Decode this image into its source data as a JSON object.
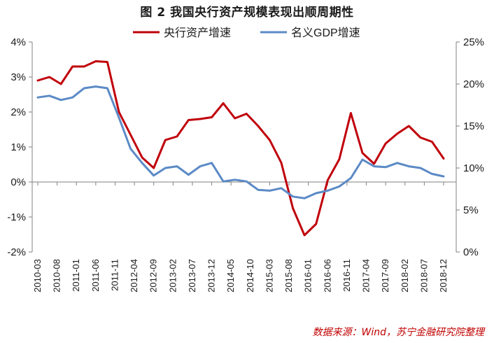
{
  "title": "图 2  我国央行资产规模表现出顺周期性",
  "source": "数据来源：Wind，苏宁金融研究院整理",
  "colors": {
    "series1": "#c0000b",
    "series2": "#5b8ac6",
    "axis": "#808080"
  },
  "chart_data": {
    "type": "line",
    "title": "图 2  我国央行资产规模表现出顺周期性",
    "legend_position": "top-center",
    "grid": false,
    "x_tick_labels": [
      "2010-03",
      "2010-08",
      "2011-01",
      "2011-06",
      "2011-11",
      "2012-04",
      "2012-09",
      "2013-02",
      "2013-07",
      "2013-12",
      "2014-05",
      "2014-10",
      "2015-03",
      "2015-08",
      "2016-01",
      "2016-06",
      "2016-11",
      "2017-04",
      "2017-09",
      "2018-02",
      "2018-07",
      "2018-12"
    ],
    "x": [
      "2010-03",
      "2010-06",
      "2010-09",
      "2010-12",
      "2011-03",
      "2011-06",
      "2011-09",
      "2011-12",
      "2012-03",
      "2012-06",
      "2012-09",
      "2012-12",
      "2013-03",
      "2013-06",
      "2013-09",
      "2013-12",
      "2014-03",
      "2014-06",
      "2014-09",
      "2014-12",
      "2015-03",
      "2015-06",
      "2015-09",
      "2015-12",
      "2016-03",
      "2016-06",
      "2016-09",
      "2016-12",
      "2017-03",
      "2017-06",
      "2017-09",
      "2017-12",
      "2018-03",
      "2018-06",
      "2018-09",
      "2018-12"
    ],
    "left_axis": {
      "ticks": [
        "4%",
        "3%",
        "2%",
        "1%",
        "0%",
        "-1%",
        "-2%"
      ],
      "ylim": [
        -2,
        4
      ]
    },
    "right_axis": {
      "ticks": [
        "25%",
        "20%",
        "15%",
        "10%",
        "5%",
        "0%"
      ],
      "ylim": [
        0,
        25
      ]
    },
    "series": [
      {
        "name": "央行资产增速",
        "axis": "left",
        "values": [
          2.9,
          3.0,
          2.8,
          3.3,
          3.3,
          3.45,
          3.43,
          2.0,
          1.35,
          0.7,
          0.4,
          1.2,
          1.3,
          1.77,
          1.8,
          1.85,
          2.25,
          1.82,
          1.95,
          1.6,
          1.2,
          0.55,
          -0.75,
          -1.52,
          -1.2,
          0.05,
          0.65,
          1.97,
          0.83,
          0.52,
          1.1,
          1.38,
          1.6,
          1.27,
          1.15,
          0.67
        ]
      },
      {
        "name": "名义GDP增速",
        "axis": "right",
        "values": [
          18.4,
          18.6,
          18.1,
          18.4,
          19.5,
          19.7,
          19.5,
          16.0,
          12.3,
          10.6,
          9.1,
          10.0,
          10.2,
          9.2,
          10.2,
          10.6,
          8.4,
          8.6,
          8.4,
          7.4,
          7.3,
          7.6,
          6.6,
          6.4,
          7.0,
          7.3,
          7.8,
          8.8,
          11.0,
          10.2,
          10.1,
          10.6,
          10.2,
          10.0,
          9.3,
          9.0
        ]
      }
    ]
  }
}
